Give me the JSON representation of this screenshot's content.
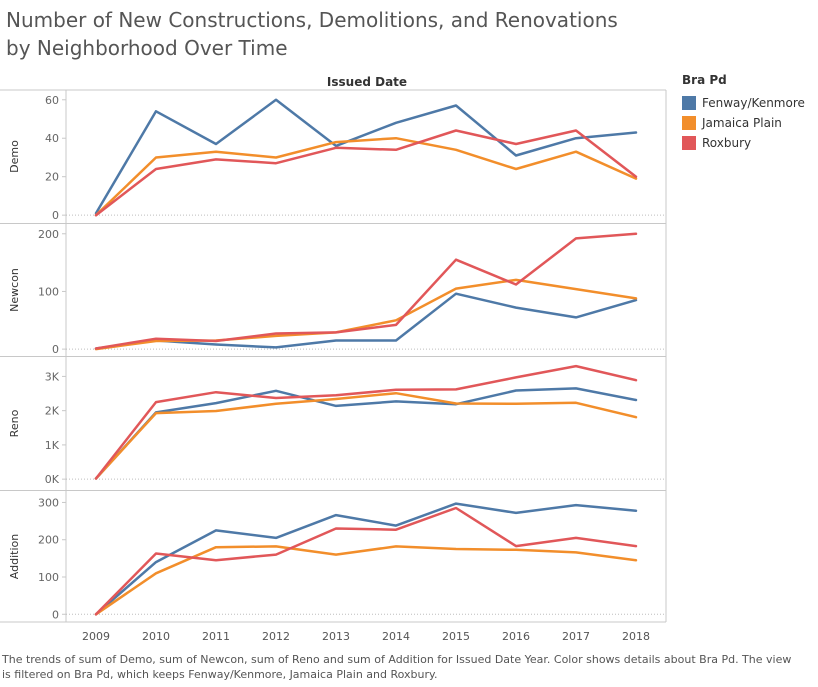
{
  "title": "Number of New Constructions, Demolitions, and Renovations by Neighborhood Over Time",
  "caption": "The trends of sum of Demo, sum of Newcon, sum of Reno and sum of Addition for Issued Date Year.  Color shows details about Bra Pd. The view is filtered on Bra Pd, which keeps Fenway/Kenmore, Jamaica Plain and Roxbury.",
  "legend": {
    "title": "Bra Pd",
    "items": [
      {
        "label": "Fenway/Kenmore",
        "color": "#4e79a7"
      },
      {
        "label": "Jamaica Plain",
        "color": "#f28e2b"
      },
      {
        "label": "Roxbury",
        "color": "#e15759"
      }
    ]
  },
  "chart_data": {
    "type": "line",
    "xlabel": "Issued Date",
    "x": [
      "2009",
      "2010",
      "2011",
      "2012",
      "2013",
      "2014",
      "2015",
      "2016",
      "2017",
      "2018"
    ],
    "panels": [
      {
        "ylabel": "Demo",
        "ylim": [
          -2,
          63
        ],
        "ticks": [
          0,
          20,
          40,
          60
        ],
        "tick_labels": [
          "0",
          "20",
          "40",
          "60"
        ],
        "series": [
          {
            "name": "Fenway/Kenmore",
            "color": "#4e79a7",
            "values": [
              1,
              54,
              37,
              60,
              36,
              48,
              57,
              31,
              40,
              43
            ]
          },
          {
            "name": "Jamaica Plain",
            "color": "#f28e2b",
            "values": [
              0,
              30,
              33,
              30,
              38,
              40,
              34,
              24,
              33,
              19
            ]
          },
          {
            "name": "Roxbury",
            "color": "#e15759",
            "values": [
              0,
              24,
              29,
              27,
              35,
              34,
              44,
              37,
              44,
              20
            ]
          }
        ]
      },
      {
        "ylabel": "Newcon",
        "ylim": [
          -5,
          210
        ],
        "ticks": [
          0,
          100,
          200
        ],
        "tick_labels": [
          "0",
          "100",
          "200"
        ],
        "series": [
          {
            "name": "Fenway/Kenmore",
            "color": "#4e79a7",
            "values": [
              1,
              15,
              8,
              3,
              15,
              15,
              96,
              72,
              55,
              85
            ]
          },
          {
            "name": "Jamaica Plain",
            "color": "#f28e2b",
            "values": [
              0,
              14,
              15,
              23,
              29,
              50,
              105,
              120,
              104,
              88
            ]
          },
          {
            "name": "Roxbury",
            "color": "#e15759",
            "values": [
              1,
              18,
              14,
              27,
              29,
              42,
              155,
              112,
              192,
              200
            ]
          }
        ]
      },
      {
        "ylabel": "Reno",
        "ylim": [
          -200,
          3450
        ],
        "ticks": [
          0,
          1000,
          2000,
          3000
        ],
        "tick_labels": [
          "0K",
          "1K",
          "2K",
          "3K"
        ],
        "series": [
          {
            "name": "Fenway/Kenmore",
            "color": "#4e79a7",
            "values": [
              20,
              1950,
              2220,
              2580,
              2140,
              2270,
              2190,
              2590,
              2650,
              2310
            ]
          },
          {
            "name": "Jamaica Plain",
            "color": "#f28e2b",
            "values": [
              20,
              1930,
              1990,
              2200,
              2340,
              2510,
              2210,
              2200,
              2230,
              1810
            ]
          },
          {
            "name": "Roxbury",
            "color": "#e15759",
            "values": [
              20,
              2250,
              2540,
              2370,
              2450,
              2610,
              2620,
              2970,
              3300,
              2890
            ]
          }
        ]
      },
      {
        "ylabel": "Addition",
        "ylim": [
          -10,
          320
        ],
        "ticks": [
          0,
          100,
          200,
          300
        ],
        "tick_labels": [
          "0",
          "100",
          "200",
          "300"
        ],
        "series": [
          {
            "name": "Fenway/Kenmore",
            "color": "#4e79a7",
            "values": [
              0,
              140,
              225,
              205,
              266,
              238,
              297,
              272,
              293,
              278
            ]
          },
          {
            "name": "Jamaica Plain",
            "color": "#f28e2b",
            "values": [
              0,
              110,
              180,
              182,
              160,
              182,
              175,
              173,
              166,
              145
            ]
          },
          {
            "name": "Roxbury",
            "color": "#e15759",
            "values": [
              0,
              163,
              145,
              160,
              230,
              227,
              285,
              183,
              205,
              183
            ]
          }
        ]
      }
    ]
  }
}
